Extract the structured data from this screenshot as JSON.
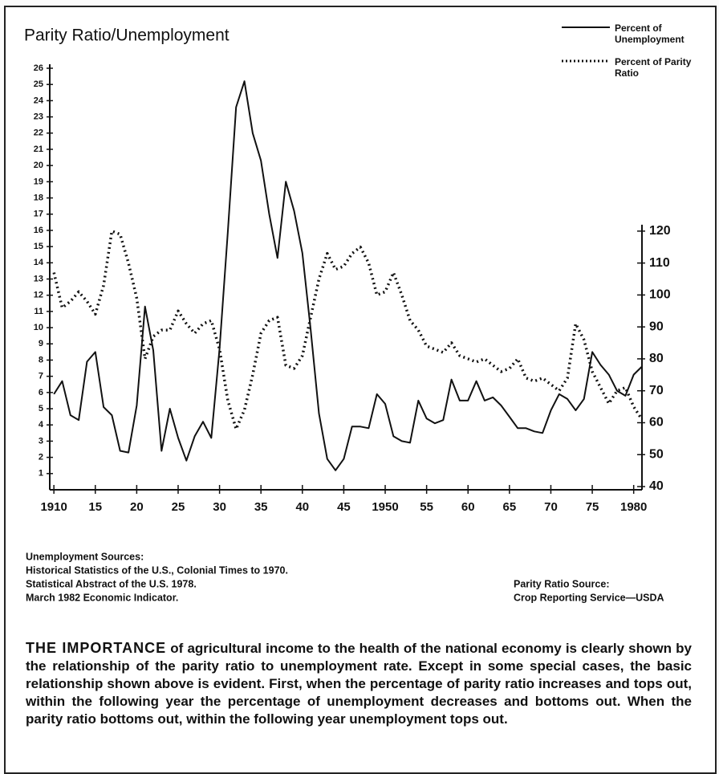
{
  "chart_data": {
    "type": "line",
    "title": "Parity Ratio/Unemployment",
    "x": [
      1910,
      1911,
      1912,
      1913,
      1914,
      1915,
      1916,
      1917,
      1918,
      1919,
      1920,
      1921,
      1922,
      1923,
      1924,
      1925,
      1926,
      1927,
      1928,
      1929,
      1930,
      1931,
      1932,
      1933,
      1934,
      1935,
      1936,
      1937,
      1938,
      1939,
      1940,
      1941,
      1942,
      1943,
      1944,
      1945,
      1946,
      1947,
      1948,
      1949,
      1950,
      1951,
      1952,
      1953,
      1954,
      1955,
      1956,
      1957,
      1958,
      1959,
      1960,
      1961,
      1962,
      1963,
      1964,
      1965,
      1966,
      1967,
      1968,
      1969,
      1970,
      1971,
      1972,
      1973,
      1974,
      1975,
      1976,
      1977,
      1978,
      1979,
      1980,
      1981
    ],
    "series": [
      {
        "name": "Percent of Unemployment",
        "color": "#111111",
        "style": "solid",
        "values": [
          5.9,
          6.7,
          4.6,
          4.3,
          7.9,
          8.5,
          5.1,
          4.6,
          2.4,
          2.3,
          5.2,
          11.3,
          8.6,
          2.4,
          5.0,
          3.2,
          1.8,
          3.3,
          4.2,
          3.2,
          8.7,
          15.9,
          23.6,
          25.2,
          22.0,
          20.3,
          17.0,
          14.3,
          19.0,
          17.2,
          14.6,
          9.9,
          4.7,
          1.9,
          1.2,
          1.9,
          3.9,
          3.9,
          3.8,
          5.9,
          5.3,
          3.3,
          3.0,
          2.9,
          5.5,
          4.4,
          4.1,
          4.3,
          6.8,
          5.5,
          5.5,
          6.7,
          5.5,
          5.7,
          5.2,
          4.5,
          3.8,
          3.8,
          3.6,
          3.5,
          4.9,
          5.9,
          5.6,
          4.9,
          5.6,
          8.5,
          7.7,
          7.1,
          6.1,
          5.8,
          7.1,
          7.6
        ]
      },
      {
        "name": "Percent of Parity Ratio",
        "color": "#111111",
        "style": "dotted",
        "axis": "y2",
        "values": [
          107,
          96,
          98,
          101,
          98,
          94,
          103,
          120,
          119,
          110,
          99,
          80,
          87,
          89,
          89,
          95,
          91,
          88,
          91,
          92,
          83,
          67,
          58,
          64,
          75,
          88,
          92,
          93,
          78,
          77,
          81,
          93,
          105,
          113,
          108,
          109,
          113,
          115,
          110,
          100,
          101,
          107,
          100,
          92,
          89,
          84,
          83,
          82,
          85,
          81,
          80,
          79,
          80,
          78,
          76,
          77,
          80,
          74,
          73,
          74,
          72,
          70,
          74,
          91,
          86,
          76,
          71,
          66,
          70,
          71,
          65,
          61
        ]
      }
    ],
    "xlim": [
      1909.5,
      1981
    ],
    "xticks": [
      1910,
      {
        "value": 1915,
        "label": "15"
      },
      {
        "value": 1920,
        "label": "20"
      },
      {
        "value": 1925,
        "label": "25"
      },
      {
        "value": 1930,
        "label": "30"
      },
      {
        "value": 1935,
        "label": "35"
      },
      {
        "value": 1940,
        "label": "40"
      },
      {
        "value": 1945,
        "label": "45"
      },
      1950,
      {
        "value": 1955,
        "label": "55"
      },
      {
        "value": 1960,
        "label": "60"
      },
      {
        "value": 1965,
        "label": "65"
      },
      {
        "value": 1970,
        "label": "70"
      },
      {
        "value": 1975,
        "label": "75"
      },
      1980
    ],
    "ylim": [
      0,
      26
    ],
    "yticks": [
      1,
      2,
      3,
      4,
      5,
      6,
      7,
      8,
      9,
      10,
      11,
      12,
      13,
      14,
      15,
      16,
      17,
      18,
      19,
      20,
      21,
      22,
      23,
      24,
      25,
      26
    ],
    "y2lim": [
      39,
      171
    ],
    "y2ticks": [
      40,
      50,
      60,
      70,
      80,
      90,
      100,
      110,
      120
    ],
    "sources_left": [
      "Unemployment Sources:",
      "Historical Statistics of the U.S., Colonial Times to 1970.",
      "Statistical Abstract of the U.S. 1978.",
      "March 1982 Economic Indicator."
    ],
    "sources_right": [
      "Parity Ratio Source:",
      "Crop Reporting Service—USDA"
    ],
    "caption": {
      "lead": "THE IMPORTANCE",
      "text": "of agricultural income to the health of the national economy is clearly shown by the relationship of the parity ratio to unemployment rate. Except in some special cases, the basic relationship shown above is evident. First, when the percentage of parity ratio increases and tops out, within the following year the percentage of unemployment decreases and bottoms out. When the parity ratio bottoms out, within the following year unemployment tops out."
    }
  }
}
